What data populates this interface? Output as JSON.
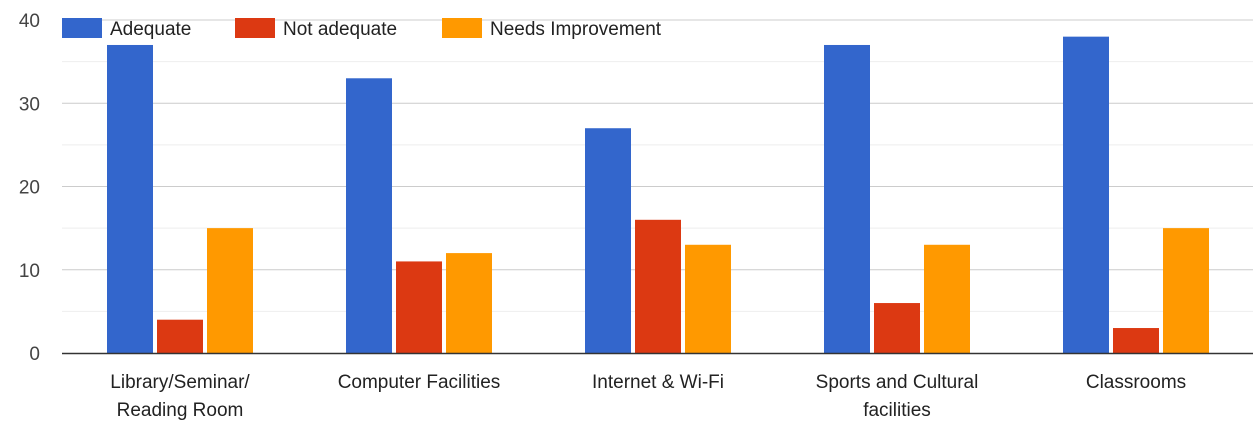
{
  "chart_data": {
    "type": "bar",
    "title": "",
    "xlabel": "",
    "ylabel": "",
    "categories": [
      [
        "Library/Seminar/",
        "Reading Room"
      ],
      [
        "Computer Facilities"
      ],
      [
        "Internet & Wi-Fi"
      ],
      [
        "Sports and Cultural",
        "facilities"
      ],
      [
        "Classrooms"
      ]
    ],
    "series": [
      {
        "name": "Adequate",
        "color": "#3366cc",
        "values": [
          37,
          33,
          27,
          37,
          38
        ]
      },
      {
        "name": "Not adequate",
        "color": "#dc3912",
        "values": [
          4,
          11,
          16,
          6,
          3
        ]
      },
      {
        "name": "Needs Improvement",
        "color": "#ff9900",
        "values": [
          15,
          12,
          13,
          13,
          15
        ]
      }
    ],
    "ylim": [
      0,
      40
    ],
    "yticks": [
      0,
      10,
      20,
      30,
      40
    ],
    "grid": true,
    "legend_position": "top-left"
  }
}
